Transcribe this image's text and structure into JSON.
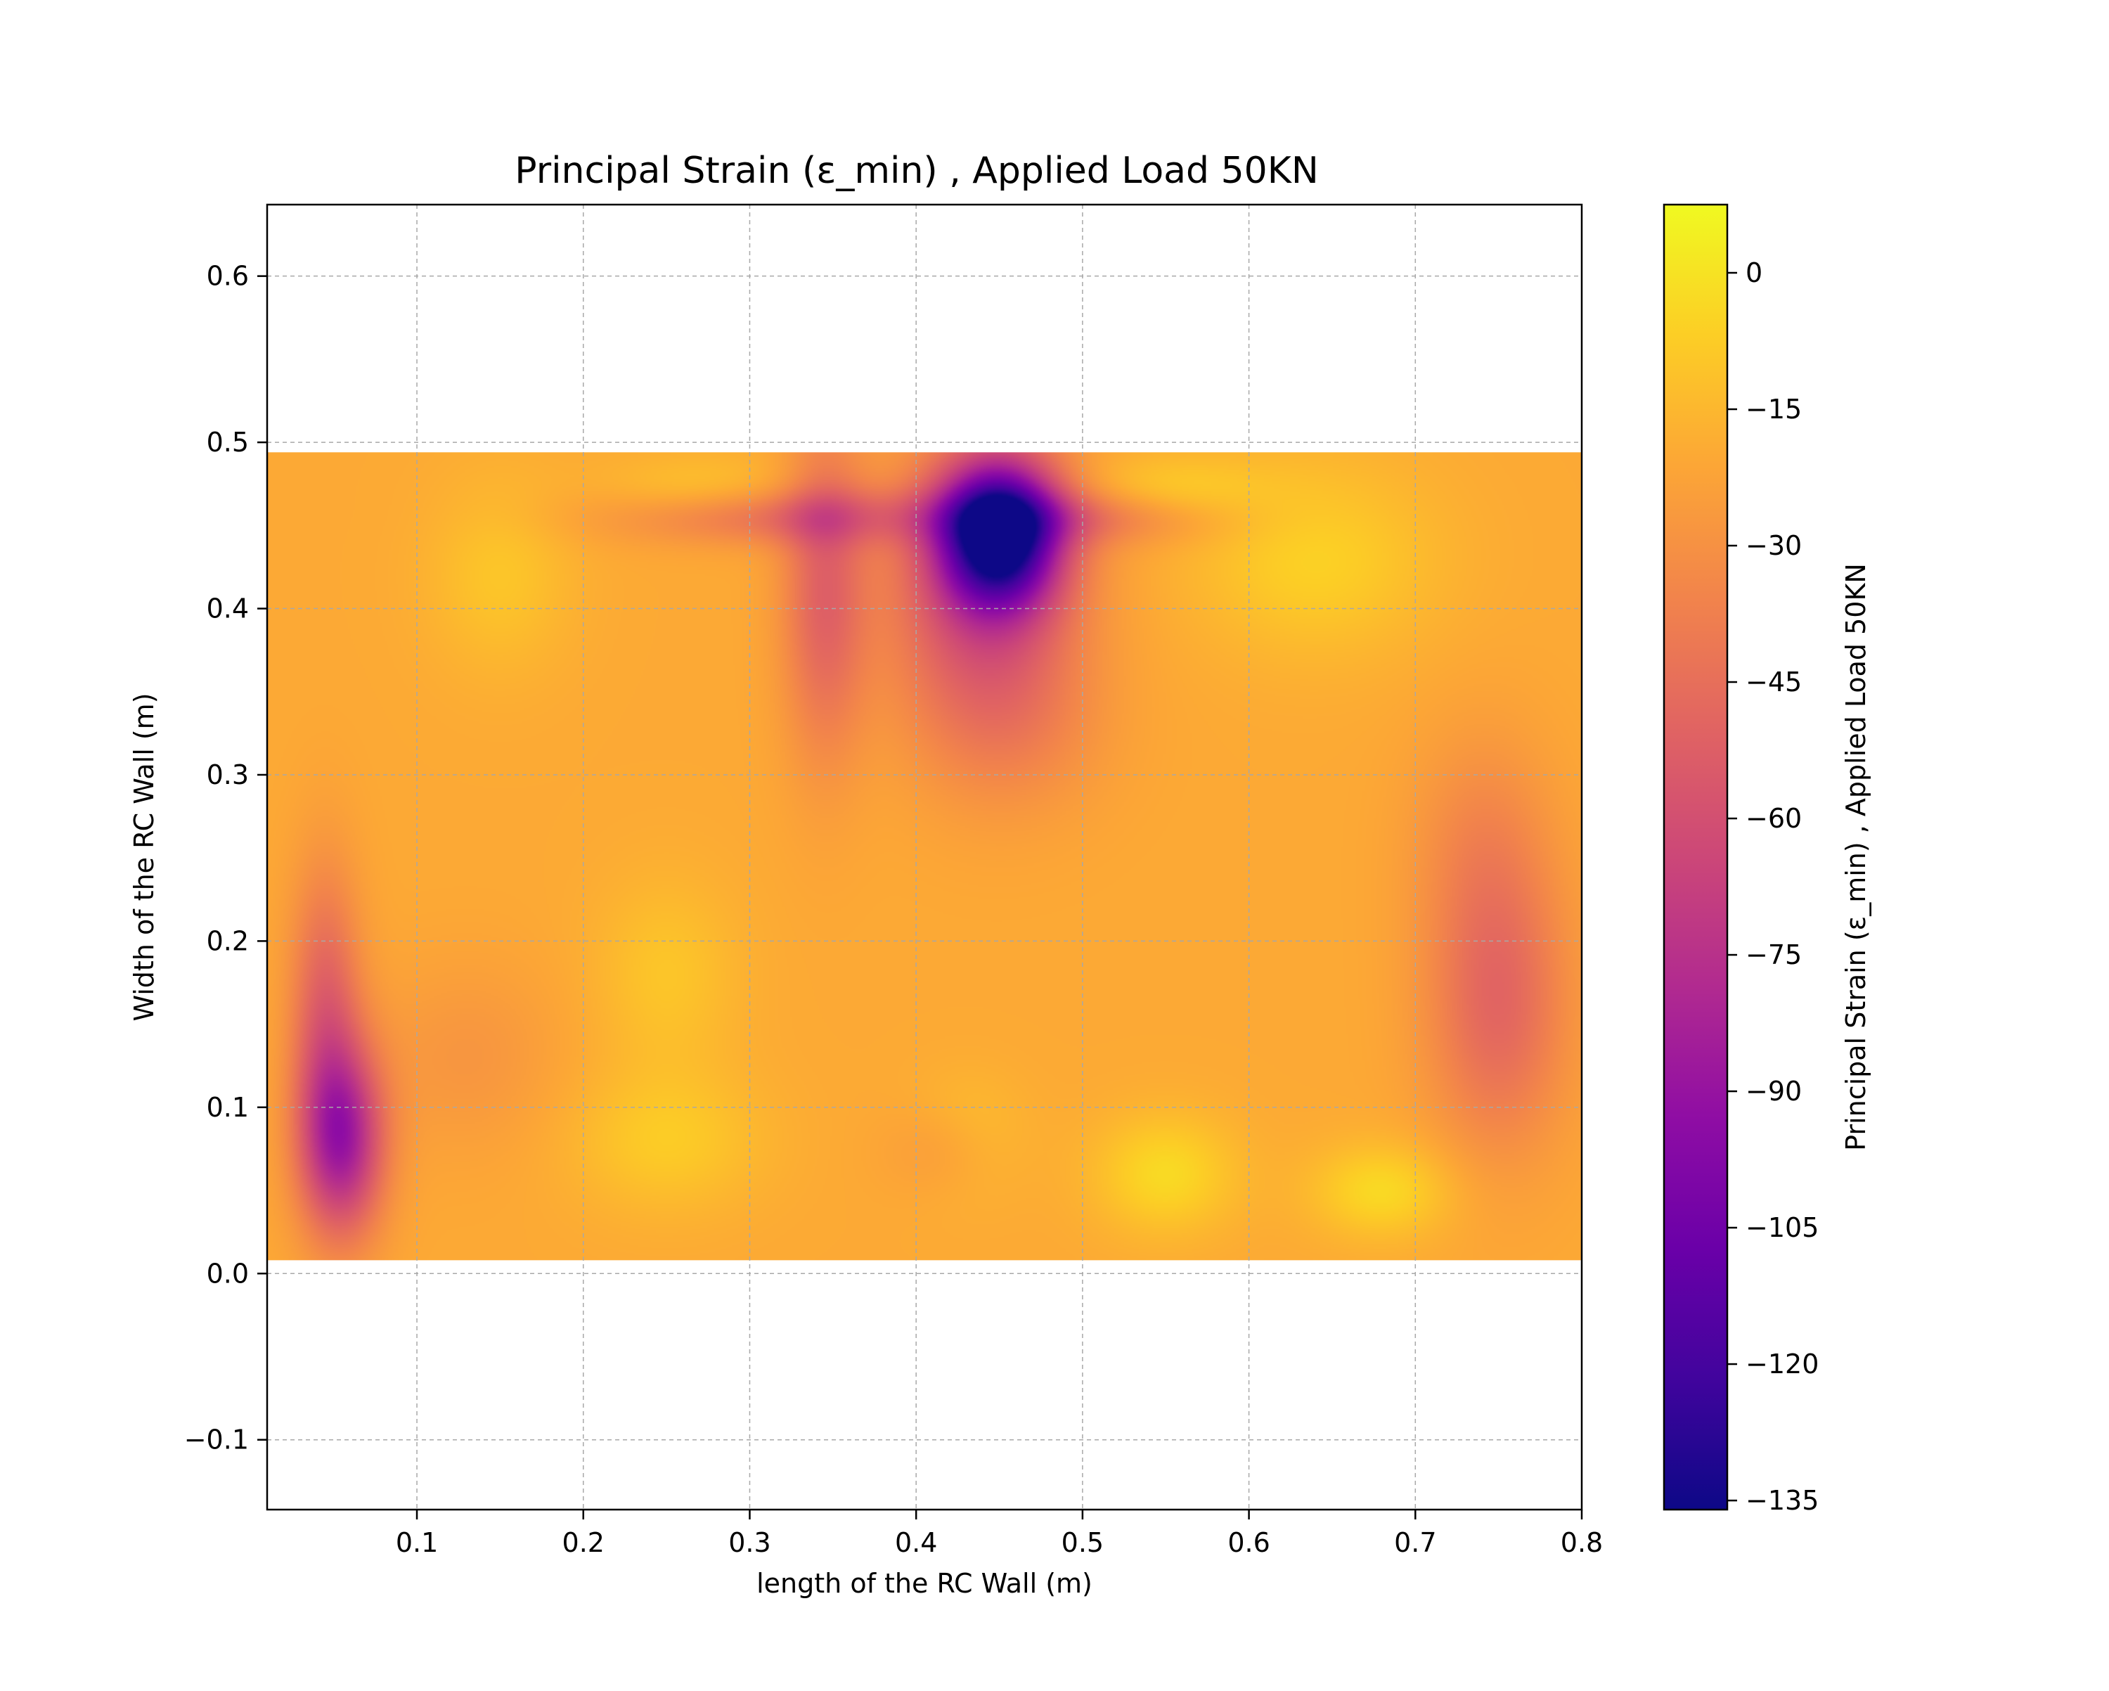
{
  "chart_data": {
    "type": "heatmap",
    "title": "Principal Strain (ε_min) , Applied Load 50KN",
    "xlabel": "length of the RC Wall (m)",
    "ylabel": "Width of the RC Wall (m)",
    "xlim": [
      0.01,
      0.8
    ],
    "ylim": [
      -0.142,
      0.643
    ],
    "x_ticks": [
      0.1,
      0.2,
      0.3,
      0.4,
      0.5,
      0.6,
      0.7,
      0.8
    ],
    "x_tick_labels": [
      "0.1",
      "0.2",
      "0.3",
      "0.4",
      "0.5",
      "0.6",
      "0.7",
      "0.8"
    ],
    "y_ticks": [
      -0.1,
      0.0,
      0.1,
      0.2,
      0.3,
      0.4,
      0.5,
      0.6
    ],
    "y_tick_labels": [
      "−0.1",
      "0.0",
      "0.1",
      "0.2",
      "0.3",
      "0.4",
      "0.5",
      "0.6"
    ],
    "grid": true,
    "grid_style": "dashed",
    "colormap": "plasma",
    "colorbar": {
      "label": "Principal Strain (ε_min) , Applied Load 50KN",
      "range": [
        -136,
        7.5
      ],
      "ticks": [
        0,
        -15,
        -30,
        -45,
        -60,
        -75,
        -90,
        -105,
        -120,
        -135
      ],
      "tick_labels": [
        "0",
        "−15",
        "−30",
        "−45",
        "−60",
        "−75",
        "−90",
        "−105",
        "−120",
        "−135"
      ],
      "placement": "right"
    },
    "field_extent": {
      "x": [
        0.01,
        0.8
      ],
      "y": [
        0.008,
        0.494
      ]
    },
    "background_value": -20,
    "hotspots": [
      {
        "x": 0.45,
        "y": 0.445,
        "value": -130,
        "spread_x": 0.025,
        "spread_y": 0.03
      },
      {
        "x": 0.44,
        "y": 0.41,
        "value": -60,
        "spread_x": 0.04,
        "spread_y": 0.06
      },
      {
        "x": 0.345,
        "y": 0.41,
        "value": -50,
        "spread_x": 0.018,
        "spread_y": 0.07
      },
      {
        "x": 0.32,
        "y": 0.455,
        "value": -45,
        "spread_x": 0.07,
        "spread_y": 0.012
      },
      {
        "x": 0.5,
        "y": 0.455,
        "value": -40,
        "spread_x": 0.06,
        "spread_y": 0.012
      },
      {
        "x": 0.46,
        "y": 0.33,
        "value": -30,
        "spread_x": 0.04,
        "spread_y": 0.04
      },
      {
        "x": 0.055,
        "y": 0.08,
        "value": -82,
        "spread_x": 0.018,
        "spread_y": 0.04
      },
      {
        "x": 0.045,
        "y": 0.16,
        "value": -50,
        "spread_x": 0.015,
        "spread_y": 0.06
      },
      {
        "x": 0.75,
        "y": 0.16,
        "value": -48,
        "spread_x": 0.03,
        "spread_y": 0.06
      },
      {
        "x": 0.74,
        "y": 0.26,
        "value": -32,
        "spread_x": 0.03,
        "spread_y": 0.05
      },
      {
        "x": 0.42,
        "y": 0.075,
        "value": -32,
        "spread_x": 0.025,
        "spread_y": 0.02
      },
      {
        "x": 0.13,
        "y": 0.13,
        "value": -28,
        "spread_x": 0.04,
        "spread_y": 0.04
      },
      {
        "x": 0.64,
        "y": 0.43,
        "value": -6,
        "spread_x": 0.05,
        "spread_y": 0.04
      },
      {
        "x": 0.15,
        "y": 0.42,
        "value": -10,
        "spread_x": 0.03,
        "spread_y": 0.04
      },
      {
        "x": 0.55,
        "y": 0.06,
        "value": -3,
        "spread_x": 0.03,
        "spread_y": 0.025
      },
      {
        "x": 0.68,
        "y": 0.05,
        "value": -3,
        "spread_x": 0.03,
        "spread_y": 0.02
      },
      {
        "x": 0.25,
        "y": 0.08,
        "value": -8,
        "spread_x": 0.04,
        "spread_y": 0.03
      },
      {
        "x": 0.25,
        "y": 0.18,
        "value": -10,
        "spread_x": 0.03,
        "spread_y": 0.04
      },
      {
        "x": 0.43,
        "y": 0.08,
        "value": -8,
        "spread_x": 0.025,
        "spread_y": 0.025
      },
      {
        "x": 0.27,
        "y": 0.47,
        "value": -10,
        "spread_x": 0.04,
        "spread_y": 0.015
      },
      {
        "x": 0.55,
        "y": 0.47,
        "value": -8,
        "spread_x": 0.04,
        "spread_y": 0.015
      }
    ]
  }
}
